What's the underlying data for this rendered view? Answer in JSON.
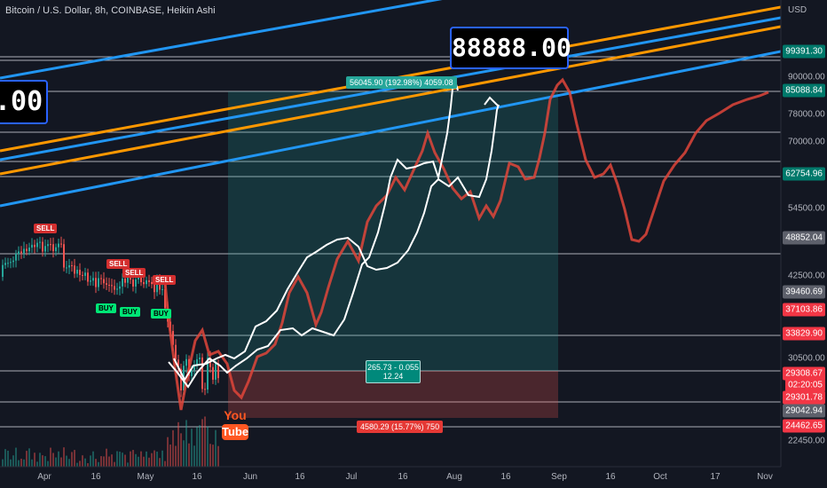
{
  "header": {
    "symbol_line": "Bitcoin / U.S. Dollar, 8h, COINBASE, Heikin Ashi",
    "currency": "USD"
  },
  "callouts": {
    "target_price": "88888.00",
    "left_price_fragment": ".00",
    "long_profit_stats": "56045.90 (192.98%) 4059.08",
    "long_entry_stats_line1": "265.73 - 0.055",
    "long_entry_stats_line2": "12.24",
    "long_loss_stats": "4580.29 (15.77%) 750"
  },
  "signals": {
    "sell": [
      "SELL",
      "SELL",
      "SELL",
      "SELL"
    ],
    "buy": [
      "BUY",
      "BUY",
      "BUY"
    ]
  },
  "logo": {
    "text_top": "You",
    "text_bottom": "Tube"
  },
  "price_axis": {
    "plain_ticks": [
      "90000.00",
      "78000.00",
      "70000.00",
      "54500.00",
      "42500.00",
      "30500.00",
      "22450.00"
    ],
    "labels": [
      {
        "text": "99391.30",
        "bg": "#00796b",
        "fg": "#ffffff"
      },
      {
        "text": "85088.84",
        "bg": "#00796b",
        "fg": "#ffffff"
      },
      {
        "text": "62754.96",
        "bg": "#00796b",
        "fg": "#ffffff"
      },
      {
        "text": "48852.04",
        "bg": "#5d606b",
        "fg": "#ffffff"
      },
      {
        "text": "39460.69",
        "bg": "#5d606b",
        "fg": "#ffffff"
      },
      {
        "text": "37103.86",
        "bg": "#f23645",
        "fg": "#ffffff"
      },
      {
        "text": "33829.90",
        "bg": "#f23645",
        "fg": "#ffffff"
      },
      {
        "text": "29308.67",
        "bg": "#f23645",
        "fg": "#ffffff"
      },
      {
        "text": "02:20:05",
        "bg": "#f23645",
        "fg": "#ffffff"
      },
      {
        "text": "29301.78",
        "bg": "#f23645",
        "fg": "#ffffff"
      },
      {
        "text": "29042.94",
        "bg": "#5d606b",
        "fg": "#ffffff"
      },
      {
        "text": "24462.65",
        "bg": "#f23645",
        "fg": "#ffffff"
      }
    ]
  },
  "time_axis": [
    "Apr",
    "16",
    "May",
    "16",
    "Jun",
    "16",
    "Jul",
    "16",
    "Aug",
    "16",
    "Sep",
    "16",
    "Oct",
    "17",
    "Nov"
  ],
  "colors": {
    "background": "#131722",
    "blue_channel": "#2196f3",
    "orange_channel": "#ff9800",
    "profit_zone": "#26a69a",
    "loss_zone": "#ef5350",
    "projection_red": "#e0453a",
    "projection_white": "#ffffff"
  }
}
